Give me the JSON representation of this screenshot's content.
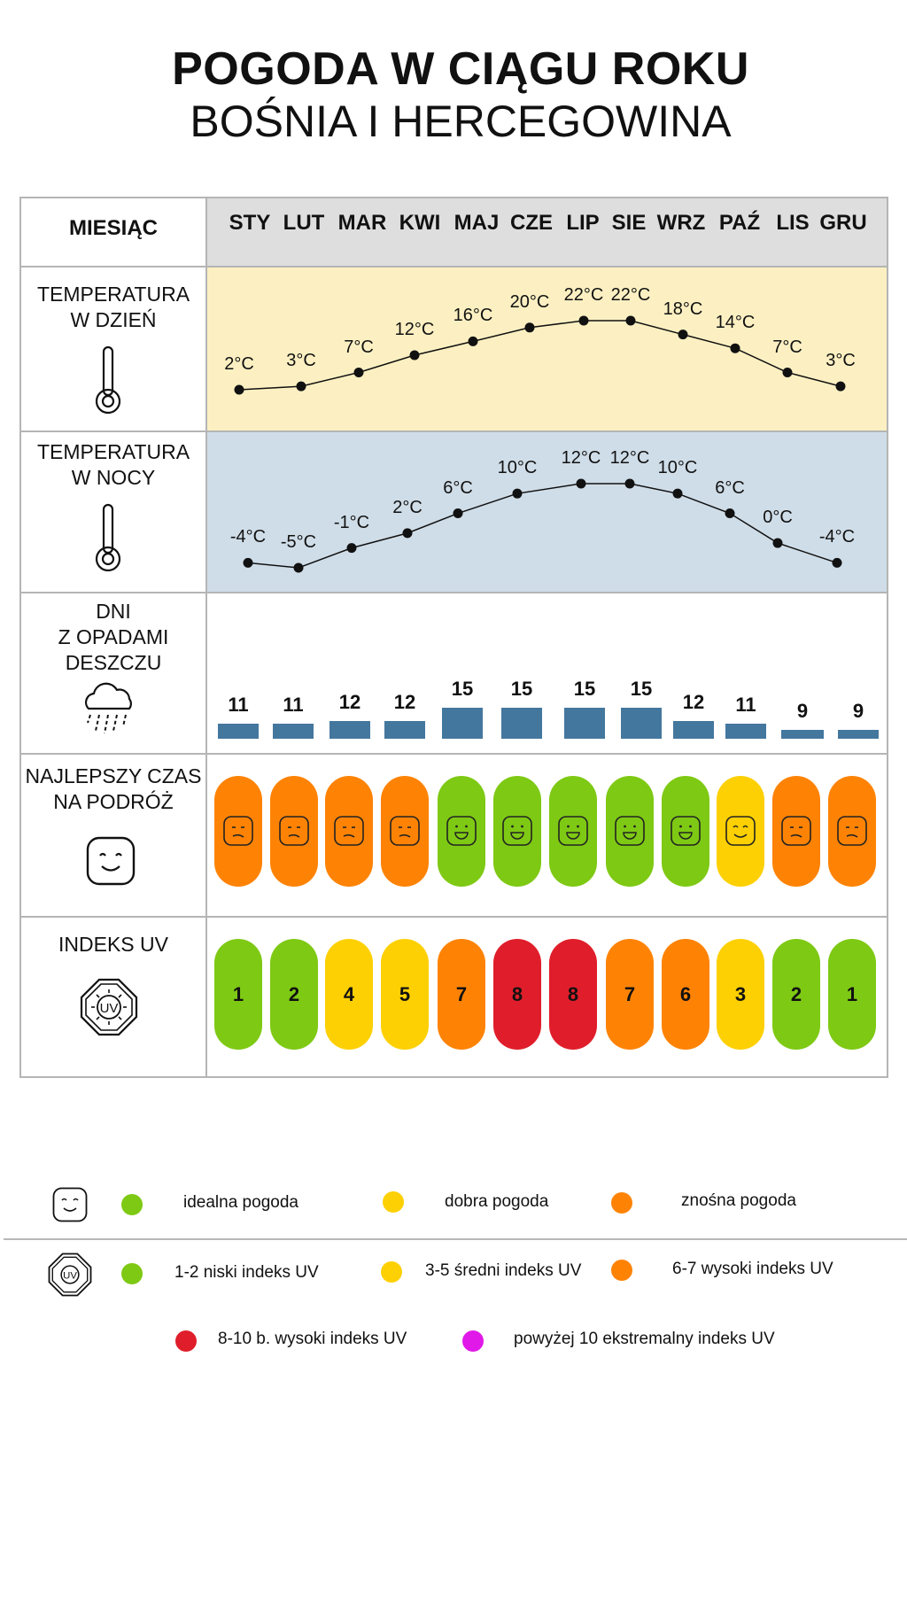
{
  "title": "POGODA W CIĄGU ROKU",
  "subtitle": "BOŚNIA I HERCEGOWINA",
  "header_label": "MIESIĄC",
  "row_labels": {
    "day_temp": [
      "TEMPERATURA",
      "W DZIEŃ"
    ],
    "night_temp": [
      "TEMPERATURA",
      "W NOCY"
    ],
    "rain": [
      "DNI",
      "Z OPADAMI",
      "DESZCZU"
    ],
    "best_time": [
      "NAJLEPSZY CZAS",
      "NA PODRÓŻ"
    ],
    "uv": [
      "INDEKS UV"
    ]
  },
  "colors": {
    "header_bg": "#dedede",
    "day_bg": "#fcf0c2",
    "night_bg": "#cfdde8",
    "bar": "#44779e",
    "ideal": "#7ec914",
    "good": "#fdd003",
    "tolerable": "#fe8305",
    "very_high": "#e01e2b",
    "extreme": "#e019e8"
  },
  "chart_data": {
    "type": "table",
    "months": [
      "STY",
      "LUT",
      "MAR",
      "KWI",
      "MAJ",
      "CZE",
      "LIP",
      "SIE",
      "WRZ",
      "PAŹ",
      "LIS",
      "GRU"
    ],
    "day_temp": [
      2,
      3,
      7,
      12,
      16,
      20,
      22,
      22,
      18,
      14,
      7,
      3
    ],
    "day_temp_labels": [
      "2°C",
      "3°C",
      "7°C",
      "12°C",
      "16°C",
      "20°C",
      "22°C",
      "22°C",
      "18°C",
      "14°C",
      "7°C",
      "3°C"
    ],
    "night_temp": [
      -4,
      -5,
      -1,
      2,
      6,
      10,
      12,
      12,
      10,
      6,
      0,
      -4
    ],
    "night_temp_labels": [
      "-4°C",
      "-5°C",
      "-1°C",
      "2°C",
      "6°C",
      "10°C",
      "12°C",
      "12°C",
      "10°C",
      "6°C",
      "0°C",
      "-4°C"
    ],
    "rain_days": [
      11,
      11,
      12,
      12,
      15,
      15,
      15,
      15,
      12,
      11,
      9,
      9
    ],
    "best_time": [
      "tolerable",
      "tolerable",
      "tolerable",
      "tolerable",
      "ideal",
      "ideal",
      "ideal",
      "ideal",
      "ideal",
      "good",
      "tolerable",
      "tolerable"
    ],
    "uv_index": [
      1,
      2,
      4,
      5,
      7,
      8,
      8,
      7,
      6,
      3,
      2,
      1
    ]
  },
  "legend": {
    "weather": [
      {
        "label": "idealna pogoda",
        "color": "#7ec914"
      },
      {
        "label": "dobra pogoda",
        "color": "#fdd003"
      },
      {
        "label": "znośna pogoda",
        "color": "#fe8305"
      }
    ],
    "uv": [
      {
        "label": "1-2 niski indeks UV",
        "color": "#7ec914"
      },
      {
        "label": "3-5 średni indeks UV",
        "color": "#fdd003"
      },
      {
        "label": "6-7 wysoki indeks UV",
        "color": "#fe8305"
      },
      {
        "label": "8-10 b. wysoki indeks UV",
        "color": "#e01e2b"
      },
      {
        "label": "powyżej 10 ekstremalny indeks UV",
        "color": "#e019e8"
      }
    ]
  },
  "uv_icon_text": "UV"
}
